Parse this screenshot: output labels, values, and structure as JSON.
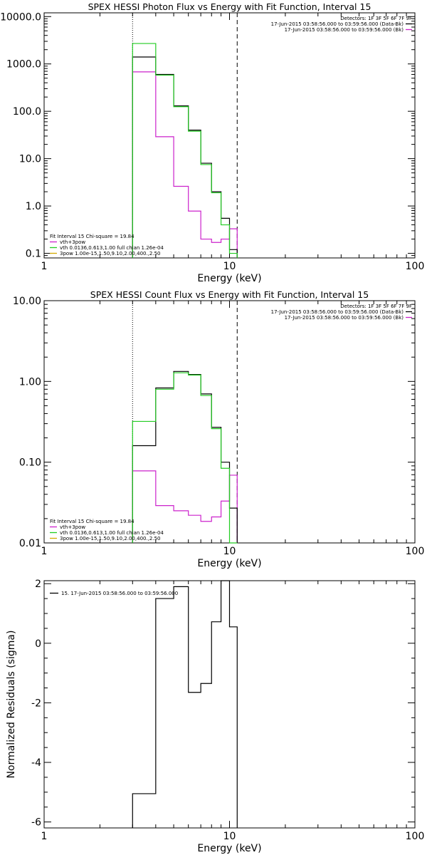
{
  "chart_data": [
    {
      "type": "line",
      "title": "SPEX HESSI Photon Flux vs Energy with Fit Function, Interval 15",
      "xlabel": "Energy (keV)",
      "ylabel": "",
      "xscale": "log",
      "yscale": "log",
      "xlim": [
        1,
        100
      ],
      "ylim": [
        0.08,
        12000
      ],
      "xticks": [
        {
          "v": 1,
          "t": "1"
        },
        {
          "v": 10,
          "t": "10"
        },
        {
          "v": 100,
          "t": "100"
        }
      ],
      "yticks": [
        {
          "v": 0.1,
          "t": "0.1"
        },
        {
          "v": 1,
          "t": "1.0"
        },
        {
          "v": 10,
          "t": "10.0"
        },
        {
          "v": 100,
          "t": "100.0"
        },
        {
          "v": 1000,
          "t": "1000.0"
        },
        {
          "v": 10000,
          "t": "10000.0"
        }
      ],
      "vlines": [
        {
          "x": 3,
          "style": "dotted"
        },
        {
          "x": 11,
          "style": "dashed"
        }
      ],
      "legend_top": {
        "header": "Detectors: 1F 3F 5F 6F 7F 9F",
        "items": [
          {
            "label": "17-Jun-2015 03:58:56.000 to 03:59:56.000 (Data-Bk)",
            "color": "#000000"
          },
          {
            "label": "17-Jun-2015 03:58:56.000 to 03:59:56.000 (Bk)",
            "color": "#cc22cc"
          }
        ]
      },
      "legend_bottom": {
        "header": "Fit Interval 15   Chi-square = 19.84",
        "items": [
          {
            "label": "vth+3pow",
            "color": "#cc22cc"
          },
          {
            "label": "vth 0.0136,0.613,1.00  full chian 1.26e-04",
            "color": "#22cc22"
          },
          {
            "label": "3pow 1.00e-15,1.50,9.10,2.00,400.,2.50",
            "color": "#d4aa00"
          }
        ]
      },
      "edges": [
        3,
        4,
        5,
        6,
        7,
        8,
        9,
        10,
        11
      ],
      "series": [
        {
          "name": "Data-Bk",
          "color": "#000000",
          "values": [
            1400,
            600,
            130,
            40,
            8,
            2,
            0.55,
            0.12
          ]
        },
        {
          "name": "Bk",
          "color": "#cc22cc",
          "values": [
            680,
            29,
            2.6,
            0.78,
            0.2,
            0.17,
            0.2,
            0.33
          ]
        },
        {
          "name": "vth+3pow",
          "color": "#22cc22",
          "values": [
            2700,
            580,
            125,
            38,
            7.5,
            1.9,
            0.4,
            0.1
          ]
        }
      ]
    },
    {
      "type": "line",
      "title": "SPEX HESSI Count Flux vs Energy with Fit Function, Interval 15",
      "xlabel": "Energy (keV)",
      "ylabel": "",
      "xscale": "log",
      "yscale": "log",
      "xlim": [
        1,
        100
      ],
      "ylim": [
        0.01,
        10
      ],
      "xticks": [
        {
          "v": 1,
          "t": "1"
        },
        {
          "v": 10,
          "t": "10"
        },
        {
          "v": 100,
          "t": "100"
        }
      ],
      "yticks": [
        {
          "v": 0.01,
          "t": "0.01"
        },
        {
          "v": 0.1,
          "t": "0.10"
        },
        {
          "v": 1,
          "t": "1.00"
        },
        {
          "v": 10,
          "t": "10.00"
        }
      ],
      "vlines": [
        {
          "x": 3,
          "style": "dotted"
        },
        {
          "x": 11,
          "style": "dashed"
        }
      ],
      "legend_top": {
        "header": "Detectors: 1F 3F 5F 6F 7F 9F",
        "items": [
          {
            "label": "17-Jun-2015 03:58:56.000 to 03:59:56.000 (Data-Bk)",
            "color": "#000000"
          },
          {
            "label": "17-Jun-2015 03:58:56.000 to 03:59:56.000 (Bk)",
            "color": "#cc22cc"
          }
        ]
      },
      "legend_bottom": {
        "header": "Fit Interval 15   Chi-square = 19.84",
        "items": [
          {
            "label": "vth+3pow",
            "color": "#cc22cc"
          },
          {
            "label": "vth 0.0136,0.613,1.00  full chian 1.26e-04",
            "color": "#22cc22"
          },
          {
            "label": "3pow 1.00e-15,1.50,9.10,2.00,400.,2.50",
            "color": "#d4aa00"
          }
        ]
      },
      "edges": [
        3,
        4,
        5,
        6,
        7,
        8,
        9,
        10,
        11
      ],
      "series": [
        {
          "name": "Data-Bk",
          "color": "#000000",
          "values": [
            0.16,
            0.83,
            1.33,
            1.22,
            0.7,
            0.27,
            0.1,
            0.027
          ]
        },
        {
          "name": "Bk",
          "color": "#cc22cc",
          "values": [
            0.078,
            0.029,
            0.025,
            0.022,
            0.0185,
            0.021,
            0.033,
            0.069
          ]
        },
        {
          "name": "vth+3pow",
          "color": "#22cc22",
          "values": [
            0.32,
            0.8,
            1.28,
            1.2,
            0.67,
            0.26,
            0.084,
            0.01
          ]
        }
      ]
    },
    {
      "type": "line",
      "title": "",
      "xlabel": "Energy (keV)",
      "ylabel": "Normalized Residuals (sigma)",
      "xscale": "log",
      "yscale": "linear",
      "xlim": [
        1,
        100
      ],
      "ylim": [
        -6.2,
        2.1
      ],
      "xticks": [
        {
          "v": 1,
          "t": "1"
        },
        {
          "v": 10,
          "t": "10"
        },
        {
          "v": 100,
          "t": "100"
        }
      ],
      "yticks": [
        {
          "v": -6,
          "t": "-6"
        },
        {
          "v": -4,
          "t": "-4"
        },
        {
          "v": -2,
          "t": "-2"
        },
        {
          "v": 0,
          "t": "0"
        },
        {
          "v": 2,
          "t": "2"
        }
      ],
      "vlines": [],
      "legend_top": {
        "header": "",
        "items": [
          {
            "label": "15. 17-Jun-2015 03:58:56.000 to 03:59:56.000",
            "color": "#000000"
          }
        ]
      },
      "legend_bottom": {
        "header": "",
        "items": []
      },
      "edges": [
        3,
        4,
        5,
        6,
        7,
        8,
        9,
        10,
        11
      ],
      "series": [
        {
          "name": "15. 17-Jun-2015 03:58:56.000 to 03:59:56.000",
          "color": "#000000",
          "values": [
            -5.05,
            1.5,
            1.9,
            -1.65,
            -1.35,
            0.72,
            2.1,
            0.55
          ]
        }
      ]
    }
  ]
}
